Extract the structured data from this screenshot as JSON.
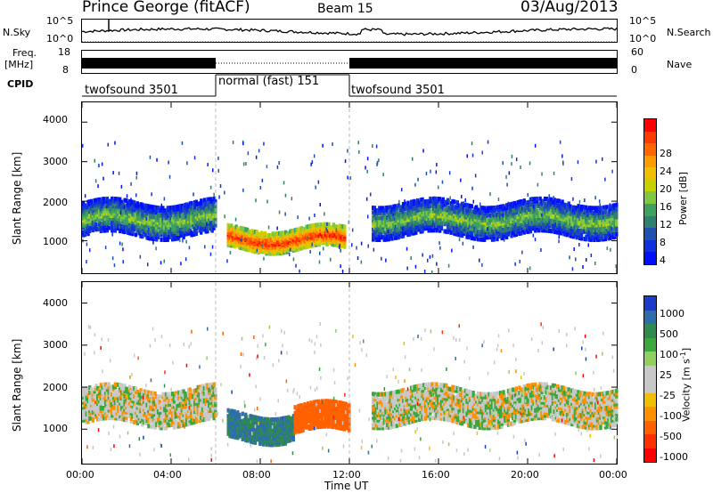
{
  "header": {
    "station": "Prince George (fitACF)",
    "beam": "Beam 15",
    "date": "03/Aug/2013"
  },
  "top_panels": {
    "nsky_label": "N.Sky",
    "nsky_ticks": [
      "10^5",
      "10^0"
    ],
    "nsearch_label": "N.Search",
    "nsearch_ticks": [
      "10^5",
      "10^0"
    ],
    "freq_label": "Freq.",
    "freq_unit": "[MHz]",
    "freq_ticks": [
      "18",
      "8"
    ],
    "nave_label": "Nave",
    "nave_ticks": [
      "60",
      "0"
    ],
    "cpid_label": "CPID",
    "cpid_segments": [
      {
        "label": "twofsound 3501",
        "start_h": 0,
        "end_h": 6
      },
      {
        "label": "normal (fast) 151",
        "start_h": 6,
        "end_h": 12
      },
      {
        "label": "twofsound 3501",
        "start_h": 12,
        "end_h": 24
      }
    ]
  },
  "colorbars": {
    "power": {
      "label": "Power [dB]",
      "ticks": [
        "28",
        "24",
        "20",
        "16",
        "12",
        "8",
        "4"
      ],
      "colors": [
        "#ff0000",
        "#ff3a00",
        "#ff6600",
        "#ff9a00",
        "#f0c000",
        "#c8d000",
        "#80c840",
        "#40a060",
        "#308070",
        "#2050b0",
        "#1030e0",
        "#0010ff"
      ]
    },
    "velocity": {
      "label": "Velocity [m s",
      "label_sup": "-1",
      "label_end": "]",
      "ticks": [
        "1000",
        "500",
        "100",
        "25",
        "-25",
        "-100",
        "-500",
        "-1000"
      ],
      "colors": [
        "#1a3cc8",
        "#2e6ea8",
        "#2f8a50",
        "#3aa83a",
        "#8fd060",
        "#c8c8c8",
        "#c8c8c8",
        "#f0c000",
        "#ff9000",
        "#ff6000",
        "#ff3000",
        "#ff0000"
      ]
    }
  },
  "chart_data": [
    {
      "type": "heatmap",
      "title": "Beam 15",
      "ylabel": "Slant Range [km]",
      "xlabel": "Time UT",
      "y_ticks": [
        1000,
        2000,
        3000,
        4000
      ],
      "ylim": [
        180,
        4500
      ],
      "x_ticks": [
        "00:00",
        "04:00",
        "08:00",
        "12:00",
        "16:00",
        "20:00",
        "00:00"
      ],
      "xlim_hours": [
        0,
        24
      ],
      "quantity": "Power [dB]",
      "bands": [
        {
          "t_start": 0,
          "t_end": 6,
          "range_center": 1600,
          "range_width": 800,
          "power": 14
        },
        {
          "t_start": 6.5,
          "t_end": 11.8,
          "range_center": 1100,
          "range_width": 500,
          "power": 28
        },
        {
          "t_start": 13,
          "t_end": 24,
          "range_center": 1600,
          "range_width": 800,
          "power": 14
        }
      ]
    },
    {
      "type": "heatmap",
      "ylabel": "Slant Range [km]",
      "xlabel": "Time UT",
      "y_ticks": [
        1000,
        2000,
        3000,
        4000
      ],
      "ylim": [
        180,
        4500
      ],
      "x_ticks": [
        "00:00",
        "04:00",
        "08:00",
        "12:00",
        "16:00",
        "20:00",
        "00:00"
      ],
      "xlim_hours": [
        0,
        24
      ],
      "quantity": "Velocity [m s-1]",
      "bands": [
        {
          "t_start": 0,
          "t_end": 6,
          "range_center": 1600,
          "range_width": 800,
          "velocity": 0
        },
        {
          "t_start": 6.5,
          "t_end": 9.5,
          "range_center": 1100,
          "range_width": 600,
          "velocity": 300
        },
        {
          "t_start": 9.5,
          "t_end": 12,
          "range_center": 1300,
          "range_width": 600,
          "velocity": -400
        },
        {
          "t_start": 13,
          "t_end": 24,
          "range_center": 1600,
          "range_width": 800,
          "velocity": 0
        }
      ]
    }
  ]
}
